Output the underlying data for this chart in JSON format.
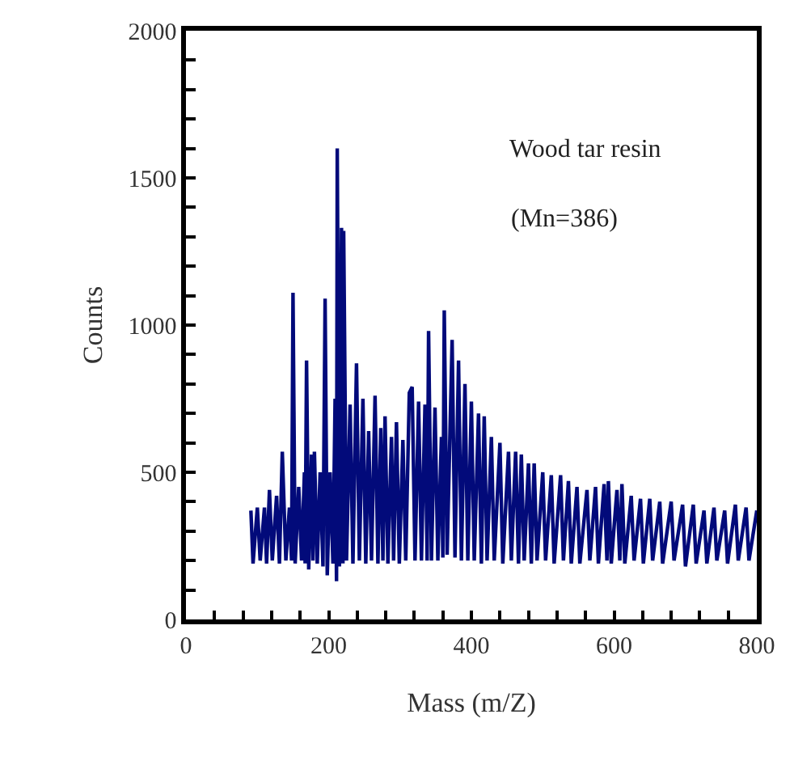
{
  "chart_data": {
    "type": "line",
    "xlabel": "Mass (m/Z)",
    "ylabel": "Counts",
    "annotations": [
      "Wood tar resin",
      "(Mn=386)"
    ],
    "xlim": [
      0,
      800
    ],
    "ylim": [
      0,
      2000
    ],
    "xticks": [
      0,
      {
        "value": 40,
        "label": null
      },
      {
        "value": 80,
        "label": null
      },
      {
        "value": 120,
        "label": null
      },
      {
        "value": 160,
        "label": null
      },
      200,
      {
        "value": 240,
        "label": null
      },
      {
        "value": 280,
        "label": null
      },
      {
        "value": 320,
        "label": null
      },
      {
        "value": 360,
        "label": null
      },
      400,
      {
        "value": 440,
        "label": null
      },
      {
        "value": 480,
        "label": null
      },
      {
        "value": 520,
        "label": null
      },
      {
        "value": 560,
        "label": null
      },
      600,
      {
        "value": 640,
        "label": null
      },
      {
        "value": 680,
        "label": null
      },
      {
        "value": 720,
        "label": null
      },
      {
        "value": 760,
        "label": null
      },
      800
    ],
    "yticks": [
      0,
      {
        "value": 100,
        "label": null
      },
      {
        "value": 200,
        "label": null
      },
      {
        "value": 300,
        "label": null
      },
      {
        "value": 400,
        "label": null
      },
      500,
      {
        "value": 600,
        "label": null
      },
      {
        "value": 700,
        "label": null
      },
      {
        "value": 800,
        "label": null
      },
      {
        "value": 900,
        "label": null
      },
      1000,
      {
        "value": 1100,
        "label": null
      },
      {
        "value": 1200,
        "label": null
      },
      {
        "value": 1300,
        "label": null
      },
      {
        "value": 1400,
        "label": null
      },
      1500,
      {
        "value": 1600,
        "label": null
      },
      {
        "value": 1700,
        "label": null
      },
      {
        "value": 1800,
        "label": null
      },
      {
        "value": 1900,
        "label": null
      },
      2000
    ],
    "series": [
      {
        "color": "#020a7a",
        "x": [
          91,
          94,
          100,
          104,
          110,
          113,
          117,
          121,
          127,
          131,
          135,
          140,
          145,
          148,
          150,
          153,
          158,
          162,
          166,
          167,
          169,
          172,
          176,
          178,
          180,
          184,
          188,
          192,
          195,
          198,
          202,
          206,
          209,
          211,
          212,
          215,
          218,
          220,
          221,
          225,
          230,
          234,
          239,
          243,
          248,
          252,
          256,
          260,
          265,
          269,
          273,
          276,
          279,
          283,
          288,
          291,
          295,
          299,
          304,
          308,
          313,
          317,
          321,
          326,
          330,
          335,
          338,
          340,
          344,
          349,
          353,
          358,
          360,
          362,
          366,
          373,
          377,
          382,
          386,
          391,
          395,
          400,
          404,
          410,
          414,
          418,
          422,
          428,
          432,
          440,
          444,
          452,
          456,
          462,
          466,
          470,
          474,
          480,
          484,
          488,
          492,
          500,
          504,
          512,
          516,
          525,
          529,
          536,
          540,
          548,
          552,
          562,
          566,
          574,
          578,
          586,
          590,
          592,
          596,
          604,
          608,
          611,
          615,
          624,
          628,
          637,
          641,
          650,
          654,
          664,
          668,
          680,
          684,
          696,
          700,
          711,
          715,
          726,
          730,
          740,
          744,
          755,
          759,
          770,
          774,
          785,
          789,
          800
        ],
        "values": [
          370,
          190,
          380,
          200,
          380,
          190,
          440,
          200,
          420,
          190,
          570,
          200,
          380,
          200,
          1110,
          190,
          450,
          200,
          500,
          190,
          880,
          170,
          560,
          200,
          570,
          190,
          500,
          180,
          1090,
          150,
          500,
          190,
          750,
          130,
          1600,
          180,
          1330,
          190,
          1320,
          200,
          730,
          190,
          870,
          200,
          750,
          190,
          640,
          200,
          760,
          190,
          650,
          200,
          690,
          190,
          620,
          200,
          670,
          190,
          610,
          200,
          770,
          790,
          200,
          740,
          200,
          730,
          200,
          980,
          200,
          720,
          200,
          620,
          210,
          1050,
          220,
          950,
          210,
          880,
          200,
          800,
          200,
          740,
          200,
          700,
          190,
          690,
          200,
          620,
          200,
          600,
          190,
          570,
          200,
          570,
          190,
          560,
          200,
          530,
          190,
          530,
          200,
          500,
          200,
          490,
          190,
          490,
          200,
          470,
          190,
          450,
          190,
          440,
          200,
          450,
          190,
          460,
          200,
          470,
          190,
          440,
          200,
          460,
          190,
          420,
          200,
          410,
          190,
          410,
          200,
          400,
          190,
          400,
          200,
          390,
          180,
          390,
          190,
          370,
          190,
          380,
          200,
          370,
          190,
          390,
          200,
          380,
          200,
          370
        ]
      }
    ]
  }
}
